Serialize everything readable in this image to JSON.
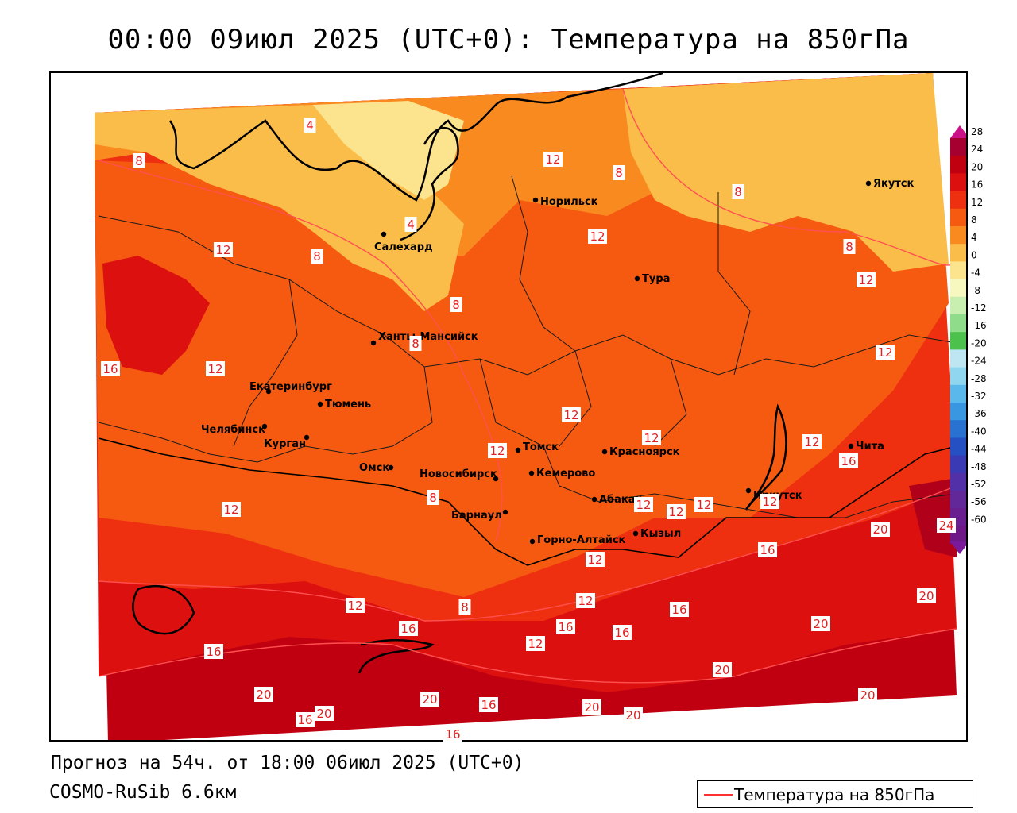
{
  "title": "00:00 09июл 2025 (UTC+0): Температура на 850гПа",
  "footer": {
    "forecast": "Прогноз на 54ч. от 18:00 06июл 2025 (UTC+0)",
    "model": "COSMO-RuSib 6.6км"
  },
  "legend": {
    "line_label": "Температура на 850гПа",
    "line_color": "#ff3030"
  },
  "colorbar": {
    "levels": [
      {
        "label": "28",
        "color": "#a50030"
      },
      {
        "label": "24",
        "color": "#c00010"
      },
      {
        "label": "20",
        "color": "#dd1010"
      },
      {
        "label": "16",
        "color": "#ee3010"
      },
      {
        "label": "12",
        "color": "#f55a10"
      },
      {
        "label": "8",
        "color": "#f98a20"
      },
      {
        "label": "4",
        "color": "#fbbd4a"
      },
      {
        "label": "0",
        "color": "#fce38e"
      },
      {
        "label": "-4",
        "color": "#f6f8c0"
      },
      {
        "label": "-8",
        "color": "#c8eeb0"
      },
      {
        "label": "-12",
        "color": "#8fdd8a"
      },
      {
        "label": "-16",
        "color": "#4cc24c"
      },
      {
        "label": "-20",
        "color": "#bde6f2"
      },
      {
        "label": "-24",
        "color": "#8fd6ee"
      },
      {
        "label": "-28",
        "color": "#5ab8ea"
      },
      {
        "label": "-32",
        "color": "#3996e0"
      },
      {
        "label": "-36",
        "color": "#2a72d2"
      },
      {
        "label": "-40",
        "color": "#2550c4"
      },
      {
        "label": "-44",
        "color": "#3a3ab4"
      },
      {
        "label": "-48",
        "color": "#5230a8"
      },
      {
        "label": "-52",
        "color": "#62289a"
      },
      {
        "label": "-56",
        "color": "#6a1f90"
      },
      {
        "label": "-60",
        "color": "#6f1888"
      }
    ],
    "top_arrow_color": "#cc1188",
    "bottom_arrow_color": "#7a1a9a"
  },
  "cities": [
    {
      "name": "Салехард"
    },
    {
      "name": "Норильск"
    },
    {
      "name": "Якутск"
    },
    {
      "name": "Тура"
    },
    {
      "name": "Ханты-Мансийск"
    },
    {
      "name": "Екатеринбург"
    },
    {
      "name": "Тюмень"
    },
    {
      "name": "Челябинск"
    },
    {
      "name": "Курган"
    },
    {
      "name": "Омск"
    },
    {
      "name": "Новосибирск"
    },
    {
      "name": "Томск"
    },
    {
      "name": "Кемерово"
    },
    {
      "name": "Красноярск"
    },
    {
      "name": "Барнаул"
    },
    {
      "name": "Абакан"
    },
    {
      "name": "Горно-Алтайск"
    },
    {
      "name": "Кызыл"
    },
    {
      "name": "Иркутск"
    },
    {
      "name": "Чита"
    }
  ],
  "contour_labels": [
    "4",
    "8",
    "12",
    "16",
    "20",
    "24"
  ]
}
